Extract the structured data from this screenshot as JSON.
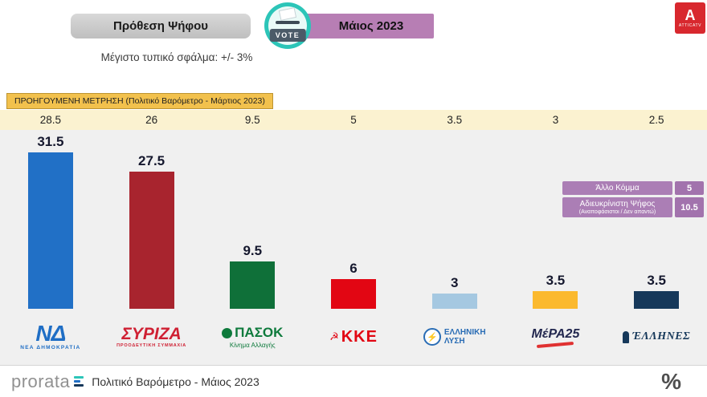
{
  "header": {
    "title": "Πρόθεση Ψήφου",
    "period": "Μάιος 2023",
    "vote_badge": "VOTE"
  },
  "branding": {
    "atticatv_letter": "A",
    "atticatv_label": "ATTICATV"
  },
  "error_note": "Μέγιστο τυπικό σφάλμα: +/- 3%",
  "previous_label": "ΠΡΟΗΓΟΥΜΕΝΗ ΜΕΤΡΗΣΗ (Πολιτικό Βαρόμετρο - Μάρτιος 2023)",
  "chart_data": {
    "type": "bar",
    "categories": [
      "ΝΕΑ ΔΗΜΟΚΡΑΤΙΑ",
      "ΣΥΡΙΖΑ",
      "ΠΑΣΟΚ",
      "ΚΚΕ",
      "ΕΛΛΗΝΙΚΗ ΛΥΣΗ",
      "ΜέΡΑ25",
      "ΕΛΛΗΝΕΣ"
    ],
    "series": [
      {
        "name": "Μάιος 2023",
        "values": [
          31.5,
          27.5,
          9.5,
          6,
          3,
          3.5,
          3.5
        ]
      },
      {
        "name": "ΠΡΟΗΓΟΥΜΕΝΗ ΜΕΤΡΗΣΗ - Μάρτιος 2023",
        "values": [
          28.5,
          26,
          9.5,
          5,
          3.5,
          3,
          2.5
        ]
      }
    ],
    "colors": [
      "#2170c6",
      "#a8242e",
      "#0f7039",
      "#e20613",
      "#a5c8e1",
      "#fbb92e",
      "#16385a"
    ],
    "title": "Πρόθεση Ψήφου - Μάιος 2023",
    "xlabel": "",
    "ylabel": "",
    "ylim": [
      0,
      35
    ],
    "grid": false,
    "legend_position": "right"
  },
  "parties": [
    {
      "value": "31.5",
      "prev": "28.5",
      "logo": {
        "main": "ΝΔ",
        "sub": "ΝΕΑ ΔΗΜΟΚΡΑΤΙΑ"
      }
    },
    {
      "value": "27.5",
      "prev": "26",
      "logo": {
        "main": "ΣΥΡΙΖΑ",
        "sub": "ΠΡΟΟΔΕΥΤΙΚΗ ΣΥΜΜΑΧΙΑ"
      }
    },
    {
      "value": "9.5",
      "prev": "9.5",
      "logo": {
        "main": "ΠΑΣΟΚ",
        "sub": "Κίνημα Αλλαγής"
      }
    },
    {
      "value": "6",
      "prev": "5",
      "logo": {
        "main": "ΚΚΕ"
      }
    },
    {
      "value": "3",
      "prev": "3.5",
      "logo": {
        "main": "ΕΛΛΗΝΙΚΗ",
        "sub": "ΛΥΣΗ"
      }
    },
    {
      "value": "3.5",
      "prev": "3",
      "logo": {
        "main": "ΜέΡΑ25"
      }
    },
    {
      "value": "3.5",
      "prev": "2.5",
      "logo": {
        "main": "ΈΛΛΗΝΕΣ"
      }
    }
  ],
  "icons": {
    "kke_symbol": "☭",
    "lysi_symbol": "⚡"
  },
  "legend": {
    "other_label": "Άλλο Κόμμα",
    "other_value": "5",
    "undecided_label": "Αδιευκρίνιστη Ψήφος",
    "undecided_sublabel": "(Αναποφάσιστοι / Δεν απαντώ)",
    "undecided_value": "10.5"
  },
  "footer": {
    "brand": "prorata",
    "text": "Πολιτικό Βαρόμετρο - Μάιος 2023",
    "percent": "%"
  }
}
